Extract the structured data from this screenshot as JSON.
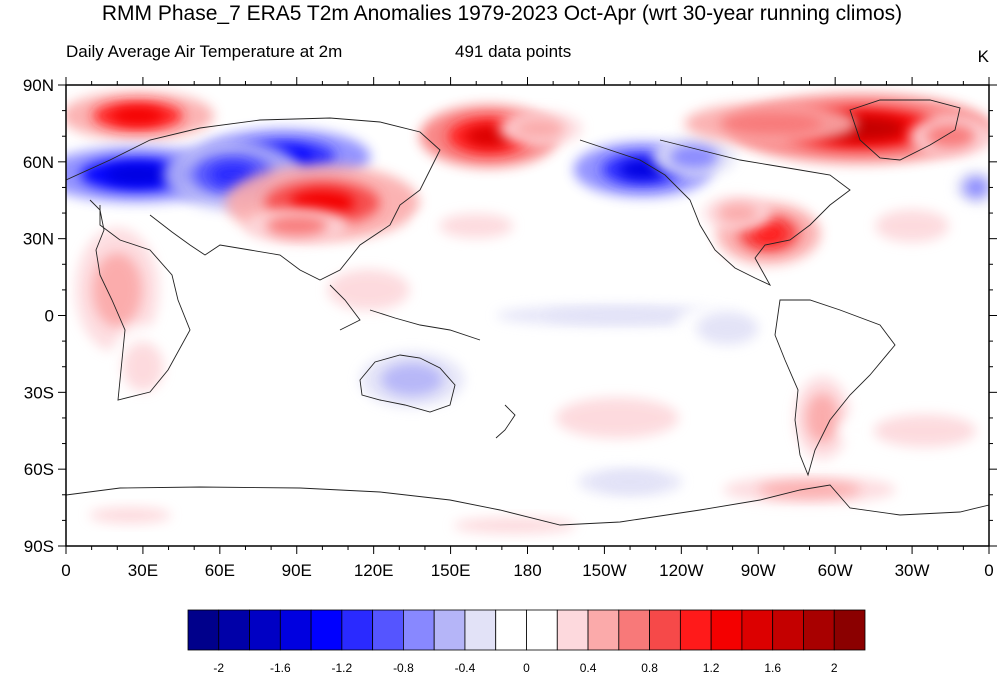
{
  "title": "RMM Phase_7 ERA5 T2m Anomalies 1979-2023 Oct-Apr (wrt 30-year running climos)",
  "subtitle_left": "Daily Average Air Temperature at 2m",
  "subtitle_center": "491 data points",
  "units": "K",
  "lat_ticks": [
    "90N",
    "60N",
    "30N",
    "0",
    "30S",
    "60S",
    "90S"
  ],
  "lon_ticks": [
    "0",
    "30E",
    "60E",
    "90E",
    "120E",
    "150E",
    "180",
    "150W",
    "120W",
    "90W",
    "60W",
    "30W",
    "0"
  ],
  "colorbar": {
    "colors": [
      "#00008b",
      "#0000a8",
      "#0000c4",
      "#0000e0",
      "#0000ff",
      "#2a2aff",
      "#5555ff",
      "#8888ff",
      "#b5b5f8",
      "#e2e2f7",
      "#ffffff",
      "#ffffff",
      "#fdd9dd",
      "#fbaaaa",
      "#f87979",
      "#f64949",
      "#ff1a1a",
      "#f40000",
      "#dc0000",
      "#c40000",
      "#a80000",
      "#8b0000"
    ],
    "labels": [
      "-2",
      "-1.6",
      "-1.2",
      "-0.8",
      "-0.4",
      "0",
      "0.4",
      "0.8",
      "1.2",
      "1.6",
      "2"
    ]
  },
  "anomaly_blobs": [
    {
      "lon": 28,
      "lat": 78,
      "rlon": 22,
      "rlat": 7,
      "value": 1.3
    },
    {
      "lon": 28,
      "lat": 55,
      "rlon": 28,
      "rlat": 8,
      "value": -1.6
    },
    {
      "lon": 85,
      "lat": 62,
      "rlon": 25,
      "rlat": 8,
      "value": -1.4
    },
    {
      "lon": 65,
      "lat": 55,
      "rlon": 20,
      "rlat": 10,
      "value": -1.1
    },
    {
      "lon": 100,
      "lat": 44,
      "rlon": 28,
      "rlat": 11,
      "value": 1.2
    },
    {
      "lon": 90,
      "lat": 35,
      "rlon": 15,
      "rlat": 5,
      "value": 0.8
    },
    {
      "lon": 165,
      "lat": 70,
      "rlon": 20,
      "rlat": 9,
      "value": 1.4
    },
    {
      "lon": 185,
      "lat": 73,
      "rlon": 12,
      "rlat": 5,
      "value": 0.6
    },
    {
      "lon": 225,
      "lat": 57,
      "rlon": 20,
      "rlat": 8,
      "value": -1.5
    },
    {
      "lon": 245,
      "lat": 62,
      "rlon": 12,
      "rlat": 6,
      "value": -0.8
    },
    {
      "lon": 274,
      "lat": 32,
      "rlon": 15,
      "rlat": 9,
      "value": 1.0
    },
    {
      "lon": 262,
      "lat": 40,
      "rlon": 10,
      "rlat": 5,
      "value": 0.6
    },
    {
      "lon": 310,
      "lat": 73,
      "rlon": 38,
      "rlat": 10,
      "value": 1.6
    },
    {
      "lon": 275,
      "lat": 75,
      "rlon": 25,
      "rlat": 6,
      "value": 0.9
    },
    {
      "lon": 345,
      "lat": 70,
      "rlon": 12,
      "rlat": 6,
      "value": 0.8
    },
    {
      "lon": 355,
      "lat": 50,
      "rlon": 6,
      "rlat": 5,
      "value": -0.8
    },
    {
      "lon": 20,
      "lat": 10,
      "rlon": 12,
      "rlat": 18,
      "value": 0.6
    },
    {
      "lon": 30,
      "lat": -20,
      "rlon": 10,
      "rlat": 12,
      "value": 0.4
    },
    {
      "lon": 135,
      "lat": -25,
      "rlon": 15,
      "rlat": 8,
      "value": -0.7
    },
    {
      "lon": 215,
      "lat": 0,
      "rlon": 35,
      "rlat": 3,
      "value": -0.5
    },
    {
      "lon": 295,
      "lat": -40,
      "rlon": 8,
      "rlat": 12,
      "value": 0.7
    },
    {
      "lon": 220,
      "lat": -65,
      "rlon": 15,
      "rlat": 4,
      "value": -0.5
    },
    {
      "lon": 215,
      "lat": -40,
      "rlon": 30,
      "rlat": 10,
      "value": 0.4
    },
    {
      "lon": 335,
      "lat": -45,
      "rlon": 25,
      "rlat": 8,
      "value": 0.4
    },
    {
      "lon": 290,
      "lat": -68,
      "rlon": 25,
      "rlat": 4,
      "value": 0.5
    },
    {
      "lon": 175,
      "lat": -82,
      "rlon": 30,
      "rlat": 4,
      "value": 0.4
    },
    {
      "lon": 25,
      "lat": -78,
      "rlon": 20,
      "rlat": 4,
      "value": 0.4
    },
    {
      "lon": 118,
      "lat": 10,
      "rlon": 20,
      "rlat": 10,
      "value": 0.3
    },
    {
      "lon": 258,
      "lat": -5,
      "rlon": 15,
      "rlat": 8,
      "value": -0.3
    },
    {
      "lon": 330,
      "lat": 35,
      "rlon": 18,
      "rlat": 8,
      "value": 0.4
    },
    {
      "lon": 160,
      "lat": 35,
      "rlon": 18,
      "rlat": 6,
      "value": 0.3
    }
  ]
}
